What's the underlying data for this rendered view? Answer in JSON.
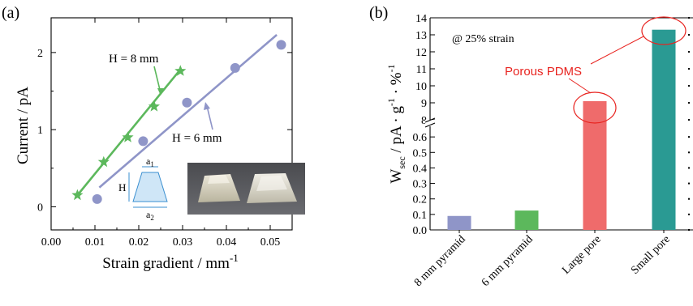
{
  "chart_data": [
    {
      "panel": "(a)",
      "type": "scatter",
      "xlabel": "Strain gradient / mm",
      "xlabel_sup": "-1",
      "ylabel": "Current / pA",
      "xlim": [
        0.0,
        0.055
      ],
      "ylim": [
        -0.3,
        2.45
      ],
      "xticks": [
        0.0,
        0.01,
        0.02,
        0.03,
        0.04,
        0.05
      ],
      "xtick_labels": [
        "0.00",
        "0.01",
        "0.02",
        "0.03",
        "0.04",
        "0.05"
      ],
      "yticks": [
        0,
        1,
        2
      ],
      "ytick_labels": [
        "0",
        "1",
        "2"
      ],
      "series": [
        {
          "name": "H = 8 mm",
          "marker": "star",
          "color": "#5cb85c",
          "x": [
            0.006,
            0.012,
            0.0175,
            0.0235,
            0.0295
          ],
          "y": [
            0.15,
            0.58,
            0.9,
            1.3,
            1.76
          ],
          "fit": [
            [
              0.006,
              0.15
            ],
            [
              0.0295,
              1.78
            ]
          ]
        },
        {
          "name": "H = 6 mm",
          "marker": "circle",
          "color": "#8f95c8",
          "x": [
            0.0105,
            0.021,
            0.031,
            0.042,
            0.0525
          ],
          "y": [
            0.1,
            0.85,
            1.35,
            1.8,
            2.1
          ],
          "fit": [
            [
              0.011,
              0.25
            ],
            [
              0.0515,
              2.23
            ]
          ]
        }
      ],
      "annotations": {
        "h8": "H = 8 mm",
        "h6": "H = 6 mm",
        "diagram_a1": "a",
        "diagram_a1_sub": "1",
        "diagram_a2": "a",
        "diagram_a2_sub": "2",
        "diagram_h": "H"
      }
    },
    {
      "panel": "(b)",
      "type": "bar",
      "categories": [
        "8 mm pyramid",
        "6 mm pyramid",
        "Large pore",
        "Small pore"
      ],
      "values": [
        0.09,
        0.125,
        9.1,
        13.3
      ],
      "colors": [
        "#8f95c8",
        "#5cb85c",
        "#ef6b6b",
        "#2a9a93"
      ],
      "ylabel": "W",
      "ylabel_sub": "sec",
      "ylabel_rest": " / pA · g",
      "ylabel_sup1": "-1",
      "ylabel_mid": " · %",
      "ylabel_sup2": "-1",
      "axis_break": true,
      "lower_ylim": [
        0.0,
        0.7
      ],
      "upper_ylim": [
        8,
        14
      ],
      "lower_ticks": [
        "0.0",
        "0.1",
        "0.2",
        "0.3",
        "0.4",
        "0.5",
        "0.6"
      ],
      "upper_ticks": [
        "8",
        "9",
        "10",
        "11",
        "12",
        "13",
        "14"
      ],
      "note": "@ 25%  strain",
      "callout": "Porous PDMS",
      "callout_color": "#e8231f"
    }
  ]
}
